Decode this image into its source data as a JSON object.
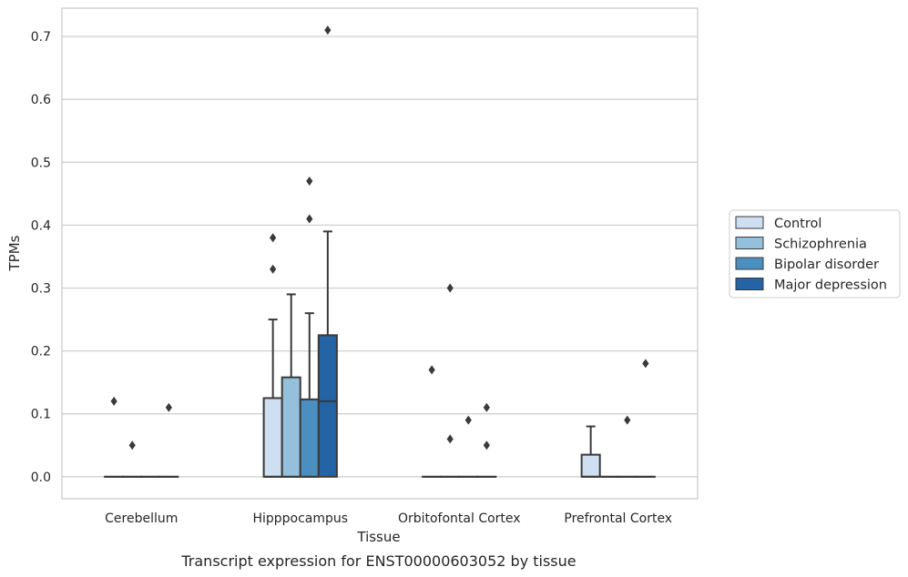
{
  "chart_data": {
    "type": "box",
    "xlabel": "Tissue",
    "ylabel": "TPMs",
    "caption": "Transcript expression for ENST00000603052 by tissue",
    "categories": [
      "Cerebellum",
      "Hipppocampus",
      "Orbitofontal Cortex",
      "Prefrontal Cortex"
    ],
    "ylim": [
      -0.035,
      0.745
    ],
    "yticks": [
      0.0,
      0.1,
      0.2,
      0.3,
      0.4,
      0.5,
      0.6,
      0.7
    ],
    "ytick_labels": [
      "0.0",
      "0.1",
      "0.2",
      "0.3",
      "0.4",
      "0.5",
      "0.6",
      "0.7"
    ],
    "grid": true,
    "legend_position": "right",
    "series": [
      {
        "name": "Control",
        "color": "#cddff0"
      },
      {
        "name": "Schizophrenia",
        "color": "#95c0dc"
      },
      {
        "name": "Bipolar disorder",
        "color": "#4b8fc1"
      },
      {
        "name": "Major depression",
        "color": "#2463a4"
      }
    ],
    "boxes": [
      {
        "category": "Cerebellum",
        "series": "Control",
        "q1": 0.0,
        "median": 0.0,
        "q3": 0.0,
        "whisker_low": 0.0,
        "whisker_high": 0.0,
        "outliers": [
          0.12
        ]
      },
      {
        "category": "Cerebellum",
        "series": "Schizophrenia",
        "q1": 0.0,
        "median": 0.0,
        "q3": 0.0,
        "whisker_low": 0.0,
        "whisker_high": 0.0,
        "outliers": [
          0.05
        ]
      },
      {
        "category": "Cerebellum",
        "series": "Bipolar disorder",
        "q1": 0.0,
        "median": 0.0,
        "q3": 0.0,
        "whisker_low": 0.0,
        "whisker_high": 0.0,
        "outliers": []
      },
      {
        "category": "Cerebellum",
        "series": "Major depression",
        "q1": 0.0,
        "median": 0.0,
        "q3": 0.0,
        "whisker_low": 0.0,
        "whisker_high": 0.0,
        "outliers": [
          0.11
        ]
      },
      {
        "category": "Hipppocampus",
        "series": "Control",
        "q1": 0.0,
        "median": 0.0,
        "q3": 0.125,
        "whisker_low": 0.0,
        "whisker_high": 0.25,
        "outliers": [
          0.33,
          0.38
        ]
      },
      {
        "category": "Hipppocampus",
        "series": "Schizophrenia",
        "q1": 0.0,
        "median": 0.0,
        "q3": 0.158,
        "whisker_low": 0.0,
        "whisker_high": 0.29,
        "outliers": []
      },
      {
        "category": "Hipppocampus",
        "series": "Bipolar disorder",
        "q1": 0.0,
        "median": 0.0,
        "q3": 0.123,
        "whisker_low": 0.0,
        "whisker_high": 0.26,
        "outliers": [
          0.41,
          0.47
        ]
      },
      {
        "category": "Hipppocampus",
        "series": "Major depression",
        "q1": 0.0,
        "median": 0.12,
        "q3": 0.225,
        "whisker_low": 0.0,
        "whisker_high": 0.39,
        "outliers": [
          0.71
        ]
      },
      {
        "category": "Orbitofontal Cortex",
        "series": "Control",
        "q1": 0.0,
        "median": 0.0,
        "q3": 0.0,
        "whisker_low": 0.0,
        "whisker_high": 0.0,
        "outliers": [
          0.17
        ]
      },
      {
        "category": "Orbitofontal Cortex",
        "series": "Schizophrenia",
        "q1": 0.0,
        "median": 0.0,
        "q3": 0.0,
        "whisker_low": 0.0,
        "whisker_high": 0.0,
        "outliers": [
          0.06,
          0.3
        ]
      },
      {
        "category": "Orbitofontal Cortex",
        "series": "Bipolar disorder",
        "q1": 0.0,
        "median": 0.0,
        "q3": 0.0,
        "whisker_low": 0.0,
        "whisker_high": 0.0,
        "outliers": [
          0.09
        ]
      },
      {
        "category": "Orbitofontal Cortex",
        "series": "Major depression",
        "q1": 0.0,
        "median": 0.0,
        "q3": 0.0,
        "whisker_low": 0.0,
        "whisker_high": 0.0,
        "outliers": [
          0.05,
          0.11
        ]
      },
      {
        "category": "Prefrontal Cortex",
        "series": "Control",
        "q1": 0.0,
        "median": 0.0,
        "q3": 0.035,
        "whisker_low": 0.0,
        "whisker_high": 0.08,
        "outliers": []
      },
      {
        "category": "Prefrontal Cortex",
        "series": "Schizophrenia",
        "q1": 0.0,
        "median": 0.0,
        "q3": 0.0,
        "whisker_low": 0.0,
        "whisker_high": 0.0,
        "outliers": []
      },
      {
        "category": "Prefrontal Cortex",
        "series": "Bipolar disorder",
        "q1": 0.0,
        "median": 0.0,
        "q3": 0.0,
        "whisker_low": 0.0,
        "whisker_high": 0.0,
        "outliers": [
          0.09
        ]
      },
      {
        "category": "Prefrontal Cortex",
        "series": "Major depression",
        "q1": 0.0,
        "median": 0.0,
        "q3": 0.0,
        "whisker_low": 0.0,
        "whisker_high": 0.0,
        "outliers": [
          0.18
        ]
      }
    ]
  }
}
